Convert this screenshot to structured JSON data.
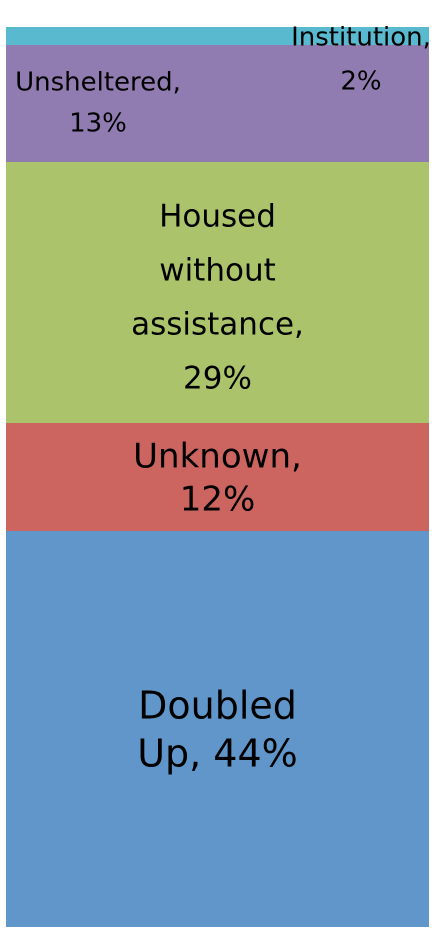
{
  "chart_data": {
    "type": "bar",
    "stacked": true,
    "orientation": "vertical",
    "title": "",
    "xlabel": "",
    "ylabel": "",
    "grid": false,
    "legend": "none",
    "segments": [
      {
        "name": "Doubled Up",
        "value": 44,
        "color": "#6096C9",
        "label_lines": [
          "Doubled",
          "Up, 44%"
        ]
      },
      {
        "name": "Unknown",
        "value": 12,
        "color": "#CC6560",
        "label_lines": [
          "Unknown,",
          "12%"
        ]
      },
      {
        "name": "Housed without assistance",
        "value": 29,
        "color": "#ABC46C",
        "label_lines": [
          "Housed",
          "without",
          "assistance,",
          "29%"
        ]
      },
      {
        "name": "Unsheltered",
        "value": 13,
        "color": "#907CB1",
        "label_lines": [
          "Unsheltered,",
          "13%"
        ]
      },
      {
        "name": "Institution",
        "value": 2,
        "color": "#58B9CF",
        "label_lines": [
          "Institution,",
          "2%"
        ]
      }
    ]
  }
}
